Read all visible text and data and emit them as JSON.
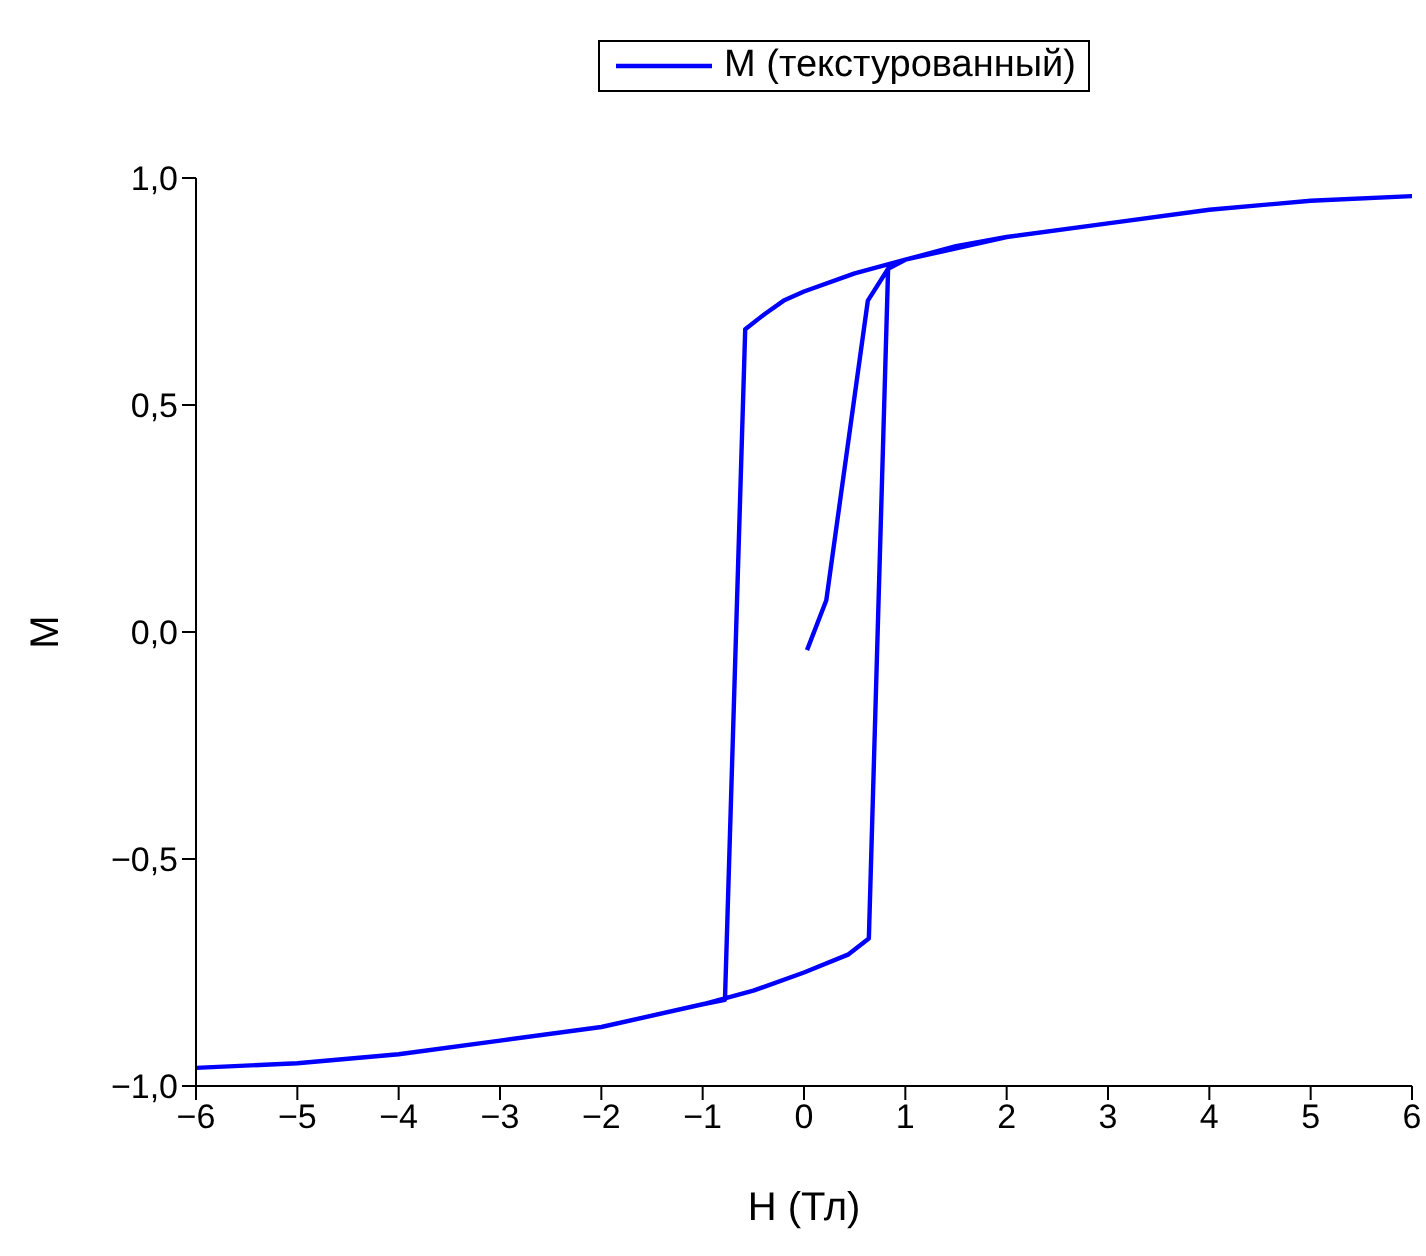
{
  "chart_data": {
    "type": "line",
    "xlabel": "H (Тл)",
    "ylabel": "M",
    "legend": "top",
    "marker": "none",
    "line_style": "solid",
    "xlim": [
      -6,
      6
    ],
    "ylim": [
      -1,
      1
    ],
    "xticks": [
      {
        "value": -6,
        "label": "−6"
      },
      {
        "value": -5,
        "label": "−5"
      },
      {
        "value": -4,
        "label": "−4"
      },
      {
        "value": -3,
        "label": "−3"
      },
      {
        "value": -2,
        "label": "−2"
      },
      {
        "value": -1,
        "label": "−1"
      },
      0,
      1,
      2,
      3,
      4,
      5,
      6
    ],
    "yticks": [
      {
        "value": -1,
        "label": "−1,0"
      },
      {
        "value": -0.5,
        "label": "−0,5"
      },
      {
        "value": 0,
        "label": "0,0"
      },
      {
        "value": 0.5,
        "label": "0,5"
      },
      {
        "value": 1,
        "label": "1,0"
      }
    ],
    "series": [
      {
        "name": "M (текстурованный)",
        "color": "#0000ff",
        "x": [
          0.03,
          0.22,
          0.63,
          0.83,
          1,
          1.5,
          2,
          3,
          4,
          5,
          6,
          5,
          4,
          3,
          2,
          1,
          0.5,
          0,
          -0.2,
          -0.39,
          -0.58,
          -0.78,
          -1,
          -2,
          -3,
          -4,
          -5,
          -6,
          -5,
          -4,
          -3,
          -2,
          -1,
          -0.5,
          0,
          0.44,
          0.64,
          0.83
        ],
        "values": [
          -0.04,
          0.07,
          0.73,
          0.8,
          0.82,
          0.85,
          0.87,
          0.9,
          0.93,
          0.95,
          0.96,
          0.95,
          0.93,
          0.9,
          0.87,
          0.82,
          0.79,
          0.75,
          0.73,
          0.7,
          0.667,
          -0.81,
          -0.82,
          -0.87,
          -0.9,
          -0.93,
          -0.95,
          -0.96,
          -0.95,
          -0.93,
          -0.9,
          -0.87,
          -0.82,
          -0.79,
          -0.75,
          -0.71,
          -0.675,
          0.8
        ]
      }
    ]
  }
}
